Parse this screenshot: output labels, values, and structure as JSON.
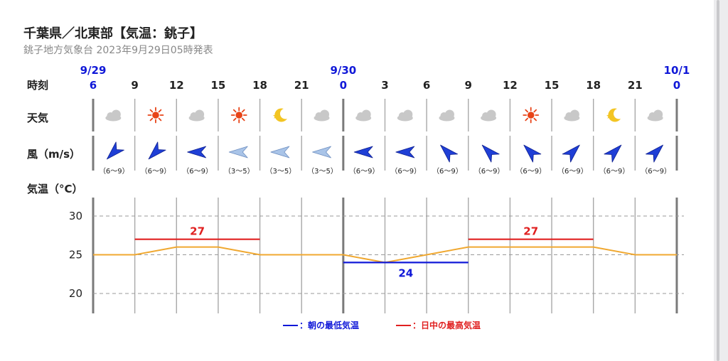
{
  "header": {
    "title": "千葉県／北東部【気温：銚子】",
    "subtitle": "銚子地方気象台 2023年9月29日05時発表"
  },
  "rows": {
    "time_label": "時刻",
    "weather_label": "天気",
    "wind_label": "風（m/s）",
    "temp_label": "気温（°C）"
  },
  "dates": [
    {
      "label": "9/29",
      "slot": 0
    },
    {
      "label": "9/30",
      "slot": 6
    },
    {
      "label": "10/1",
      "slot": 14
    }
  ],
  "hours": [
    "6",
    "9",
    "12",
    "15",
    "18",
    "21",
    "0",
    "3",
    "6",
    "9",
    "12",
    "15",
    "18",
    "21",
    "0"
  ],
  "weather": [
    "cloud-icon",
    "sun-icon",
    "cloud-icon",
    "sun-icon",
    "moon-icon",
    "cloud-icon",
    "cloud-icon",
    "cloud-icon",
    "cloud-icon",
    "cloud-icon",
    "sun-icon",
    "cloud-icon",
    "moon-icon",
    "cloud-icon"
  ],
  "wind": [
    {
      "dir": "SW",
      "speed": "（6〜9）",
      "strength": "strong"
    },
    {
      "dir": "SW",
      "speed": "（6〜9）",
      "strength": "strong"
    },
    {
      "dir": "W",
      "speed": "（6〜9）",
      "strength": "strong"
    },
    {
      "dir": "W",
      "speed": "（3〜5）",
      "strength": "weak"
    },
    {
      "dir": "W",
      "speed": "（3〜5）",
      "strength": "weak"
    },
    {
      "dir": "W",
      "speed": "（3〜5）",
      "strength": "weak"
    },
    {
      "dir": "W",
      "speed": "（6〜9）",
      "strength": "strong"
    },
    {
      "dir": "W",
      "speed": "（6〜9）",
      "strength": "strong"
    },
    {
      "dir": "NW",
      "speed": "（6〜9）",
      "strength": "strong"
    },
    {
      "dir": "NW",
      "speed": "（6〜9）",
      "strength": "strong"
    },
    {
      "dir": "NW",
      "speed": "（6〜9）",
      "strength": "strong"
    },
    {
      "dir": "NE",
      "speed": "（6〜9）",
      "strength": "strong"
    },
    {
      "dir": "NE",
      "speed": "（6〜9）",
      "strength": "strong"
    },
    {
      "dir": "NE",
      "speed": "（6〜9）",
      "strength": "strong"
    }
  ],
  "chart_data": {
    "type": "line",
    "x": [
      "9/29 6",
      "9",
      "12",
      "15",
      "18",
      "21",
      "9/30 0",
      "3",
      "6",
      "9",
      "12",
      "15",
      "18",
      "21",
      "10/1 0"
    ],
    "series": [
      {
        "values": [
          25,
          25,
          26,
          26,
          25,
          25,
          25,
          24,
          25,
          26,
          26,
          26,
          26,
          25,
          25
        ]
      }
    ],
    "ylim": [
      18,
      31
    ],
    "yticks": [
      20,
      25,
      30
    ],
    "annotations": [
      {
        "type": "max",
        "label": "27",
        "value": 27,
        "from": 1,
        "to": 4
      },
      {
        "type": "min",
        "label": "24",
        "value": 24,
        "from": 6,
        "to": 9
      },
      {
        "type": "max",
        "label": "27",
        "value": 27,
        "from": 9,
        "to": 12
      }
    ],
    "colors": {
      "line": "#f0a830",
      "max": "#e02020",
      "min": "#1018d8"
    }
  },
  "legend": {
    "min_label": "：朝の最低気温",
    "max_label": "：日中の最高気温"
  }
}
